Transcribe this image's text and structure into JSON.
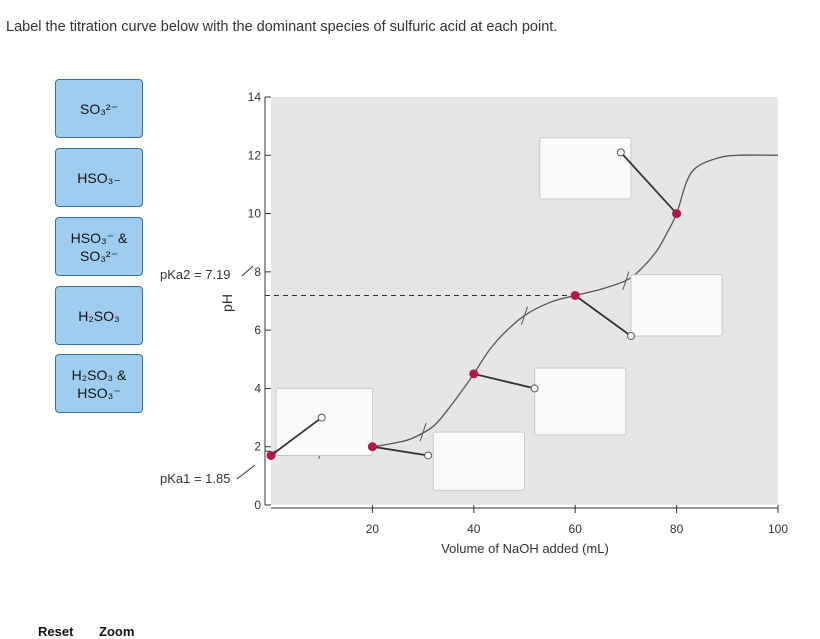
{
  "question": "Label the titration curve below with the dominant species of sulfuric acid at each point.",
  "tiles": [
    {
      "line1": "SO₃²⁻",
      "line2": ""
    },
    {
      "line1": "HSO₃₋",
      "line2": ""
    },
    {
      "line1": "HSO₃⁻ &",
      "line2": "SO₃²⁻"
    },
    {
      "line1": "H₂SO₃",
      "line2": ""
    },
    {
      "line1": "H₂SO₃ &",
      "line2": "HSO₃⁻"
    }
  ],
  "footer": {
    "reset": "Reset",
    "zoom": "Zoom"
  },
  "chart_data": {
    "type": "line",
    "title": "",
    "xlabel": "Volume of NaOH added (mL)",
    "ylabel": "pH",
    "xlim": [
      0,
      100
    ],
    "ylim": [
      0,
      14
    ],
    "x_ticks": [
      20,
      40,
      60,
      80,
      100
    ],
    "y_ticks": [
      0,
      2,
      4,
      6,
      8,
      10,
      12,
      14
    ],
    "grid": false,
    "curve": {
      "x": [
        0,
        2,
        5,
        10,
        15,
        20,
        25,
        28,
        32,
        35,
        38,
        40,
        43,
        46,
        50,
        55,
        60,
        65,
        70,
        73,
        76,
        78,
        80,
        82,
        84,
        88,
        92,
        100
      ],
      "y": [
        1.7,
        1.8,
        1.85,
        1.9,
        1.93,
        2.0,
        2.15,
        2.3,
        2.7,
        3.3,
        4.0,
        4.5,
        5.3,
        5.9,
        6.5,
        6.95,
        7.19,
        7.4,
        7.7,
        8.1,
        8.7,
        9.3,
        10.0,
        11.1,
        11.6,
        11.9,
        12.0,
        12.0
      ]
    },
    "pKa_lines": [
      {
        "label": "pKa2 = 7.19",
        "value": 7.19
      },
      {
        "label": "pKa1 = 1.85",
        "value": 1.85
      }
    ],
    "marked_points": [
      {
        "x": 0,
        "y": 1.7,
        "box": "A"
      },
      {
        "x": 20,
        "y": 2.0,
        "box": "B"
      },
      {
        "x": 40,
        "y": 4.5,
        "box": "C"
      },
      {
        "x": 60,
        "y": 7.19,
        "box": "D"
      },
      {
        "x": 80,
        "y": 10.0,
        "box": "E"
      }
    ],
    "tick_marks": [
      {
        "x": 10,
        "y": 1.9
      },
      {
        "x": 30,
        "y": 2.5
      },
      {
        "x": 50,
        "y": 6.5
      },
      {
        "x": 70,
        "y": 7.7
      }
    ],
    "drop_boxes": [
      {
        "id": "A",
        "x0": 1,
        "y0": 1.7,
        "x1": 20,
        "y1": 4.0
      },
      {
        "id": "B",
        "x0": 32,
        "y0": 0.5,
        "x1": 50,
        "y1": 2.5
      },
      {
        "id": "C",
        "x0": 52,
        "y0": 2.4,
        "x1": 70,
        "y1": 4.7
      },
      {
        "id": "D",
        "x0": 71,
        "y0": 5.8,
        "x1": 89,
        "y1": 7.9
      },
      {
        "id": "E",
        "x0": 53,
        "y0": 10.5,
        "x1": 71,
        "y1": 12.6
      }
    ],
    "leader_lines": [
      {
        "from": [
          0,
          1.7
        ],
        "to": [
          10,
          3.0
        ]
      },
      {
        "from": [
          20,
          2.0
        ],
        "to": [
          31,
          1.7
        ]
      },
      {
        "from": [
          40,
          4.5
        ],
        "to": [
          52,
          4.0
        ]
      },
      {
        "from": [
          60,
          7.19
        ],
        "to": [
          71,
          5.8
        ]
      },
      {
        "from": [
          80,
          10.0
        ],
        "to": [
          69,
          12.1
        ]
      }
    ]
  }
}
